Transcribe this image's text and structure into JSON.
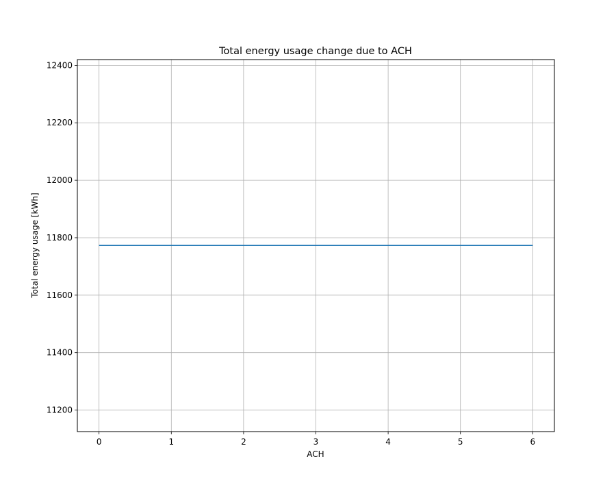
{
  "chart_data": {
    "type": "line",
    "title": "Total energy usage change due to ACH",
    "xlabel": "ACH",
    "ylabel": "Total energy usage [kWh]",
    "xlim": [
      -0.3,
      6.3
    ],
    "ylim": [
      11125,
      12420
    ],
    "x_ticks": [
      0,
      1,
      2,
      3,
      4,
      5,
      6
    ],
    "y_ticks": [
      11200,
      11400,
      11600,
      11800,
      12000,
      12200,
      12400
    ],
    "grid": true,
    "series": [
      {
        "color": "#1f77b4",
        "x": [
          0,
          1,
          2,
          3,
          4,
          5,
          6
        ],
        "y": [
          11773,
          11773,
          11773,
          11773,
          11773,
          11773,
          11773
        ]
      }
    ]
  }
}
